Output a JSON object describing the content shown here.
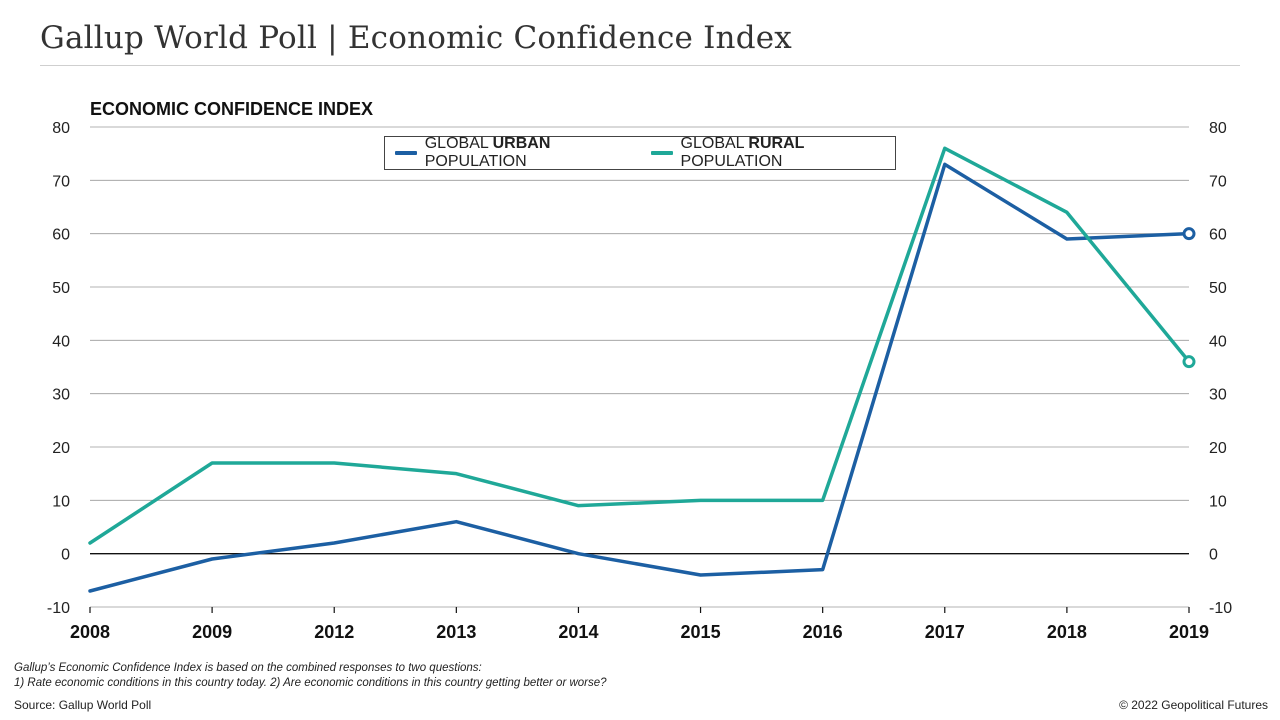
{
  "page": {
    "title": "Gallup World Poll | Economic Confidence Index",
    "footnote_line1": "Gallup’s Economic Confidence Index is based on the combined responses to two questions:",
    "footnote_line2": "1) Rate economic conditions in this country today. 2) Are economic conditions in this country getting better or worse?",
    "source": "Source: Gallup World Poll",
    "copyright": "© 2022 Geopolitical Futures"
  },
  "legend": {
    "urban": {
      "prefix": "GLOBAL ",
      "bold": "URBAN",
      "suffix": " POPULATION"
    },
    "rural": {
      "prefix": "GLOBAL ",
      "bold": "RURAL",
      "suffix": " POPULATION"
    }
  },
  "chart_data": {
    "type": "line",
    "title": "ECONOMIC CONFIDENCE INDEX",
    "x": [
      "2008",
      "2009",
      "2012",
      "2013",
      "2014",
      "2015",
      "2016",
      "2017",
      "2018",
      "2019"
    ],
    "ylim": [
      -10,
      80
    ],
    "yticks": [
      -10,
      0,
      10,
      20,
      30,
      40,
      50,
      60,
      70,
      80
    ],
    "grid": true,
    "dual_y_axis": true,
    "legend_position": "top-center",
    "series": [
      {
        "name": "GLOBAL URBAN POPULATION",
        "color": "#1c5fa3",
        "values": [
          -7,
          -1,
          2,
          6,
          0,
          -4,
          -3,
          73,
          59,
          60
        ]
      },
      {
        "name": "GLOBAL RURAL POPULATION",
        "color": "#1fa898",
        "values": [
          2,
          17,
          17,
          15,
          9,
          10,
          10,
          76,
          64,
          36
        ]
      }
    ]
  }
}
